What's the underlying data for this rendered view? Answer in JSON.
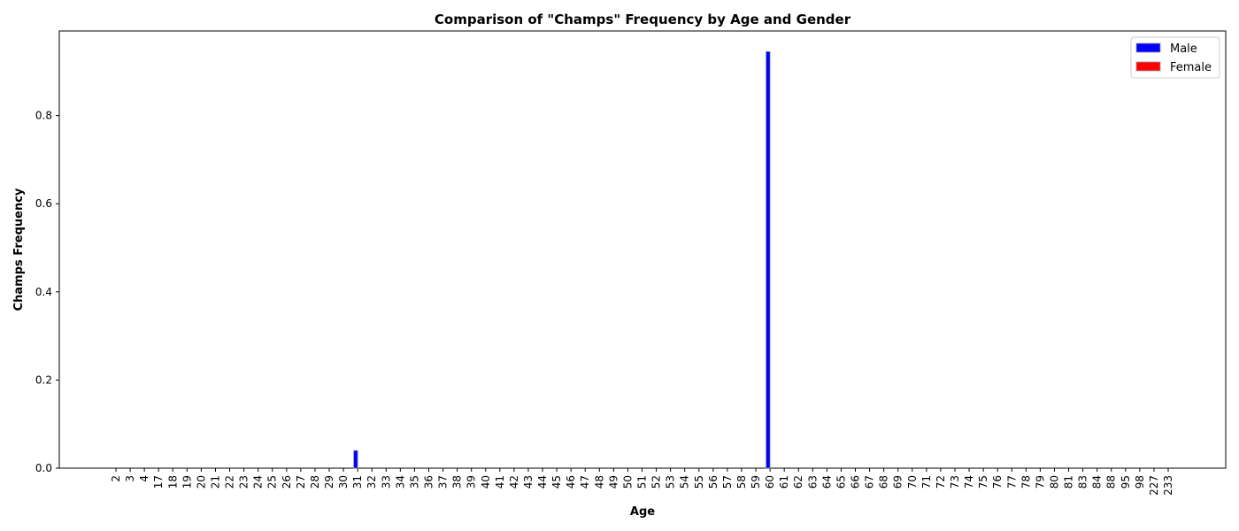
{
  "chart_data": {
    "type": "bar",
    "title": "Comparison of \"Champs\" Frequency by Age and Gender",
    "xlabel": "Age",
    "ylabel": "Champs Frequency",
    "categories": [
      "2",
      "3",
      "4",
      "17",
      "18",
      "19",
      "20",
      "21",
      "22",
      "23",
      "24",
      "25",
      "26",
      "27",
      "28",
      "29",
      "30",
      "31",
      "32",
      "33",
      "34",
      "35",
      "36",
      "37",
      "38",
      "39",
      "40",
      "41",
      "42",
      "43",
      "44",
      "45",
      "46",
      "47",
      "48",
      "49",
      "50",
      "51",
      "52",
      "53",
      "54",
      "55",
      "56",
      "57",
      "58",
      "59",
      "60",
      "61",
      "62",
      "63",
      "64",
      "65",
      "66",
      "67",
      "68",
      "69",
      "70",
      "71",
      "72",
      "73",
      "74",
      "75",
      "76",
      "77",
      "78",
      "79",
      "80",
      "81",
      "83",
      "84",
      "88",
      "95",
      "98",
      "227",
      "233"
    ],
    "series": [
      {
        "name": "Male",
        "color": "#0000ff",
        "values": [
          0,
          0,
          0,
          0,
          0,
          0,
          0,
          0,
          0,
          0,
          0,
          0,
          0,
          0,
          0,
          0,
          0,
          0.04,
          0,
          0,
          0,
          0,
          0,
          0,
          0,
          0,
          0,
          0,
          0,
          0,
          0,
          0,
          0,
          0,
          0,
          0,
          0,
          0,
          0,
          0,
          0,
          0,
          0,
          0,
          0,
          0,
          0.945,
          0,
          0,
          0,
          0,
          0,
          0,
          0,
          0,
          0,
          0,
          0,
          0,
          0,
          0,
          0,
          0,
          0,
          0,
          0,
          0,
          0,
          0,
          0,
          0,
          0,
          0,
          0,
          0
        ]
      },
      {
        "name": "Female",
        "color": "#ff0000",
        "values": [
          0,
          0,
          0,
          0,
          0,
          0,
          0,
          0,
          0,
          0,
          0,
          0,
          0,
          0,
          0,
          0,
          0,
          0,
          0,
          0,
          0,
          0,
          0,
          0,
          0,
          0,
          0,
          0,
          0,
          0,
          0,
          0,
          0,
          0,
          0,
          0,
          0,
          0,
          0,
          0,
          0,
          0,
          0,
          0,
          0,
          0,
          0,
          0,
          0,
          0,
          0,
          0,
          0,
          0,
          0,
          0,
          0,
          0,
          0,
          0,
          0,
          0,
          0,
          0,
          0,
          0,
          0,
          0,
          0,
          0,
          0,
          0,
          0,
          0,
          0
        ]
      }
    ],
    "ylim": [
      0,
      0.992
    ],
    "yticks": [
      "0.0",
      "0.2",
      "0.4",
      "0.6",
      "0.8"
    ],
    "grid": false,
    "legend_position": "top-right"
  }
}
